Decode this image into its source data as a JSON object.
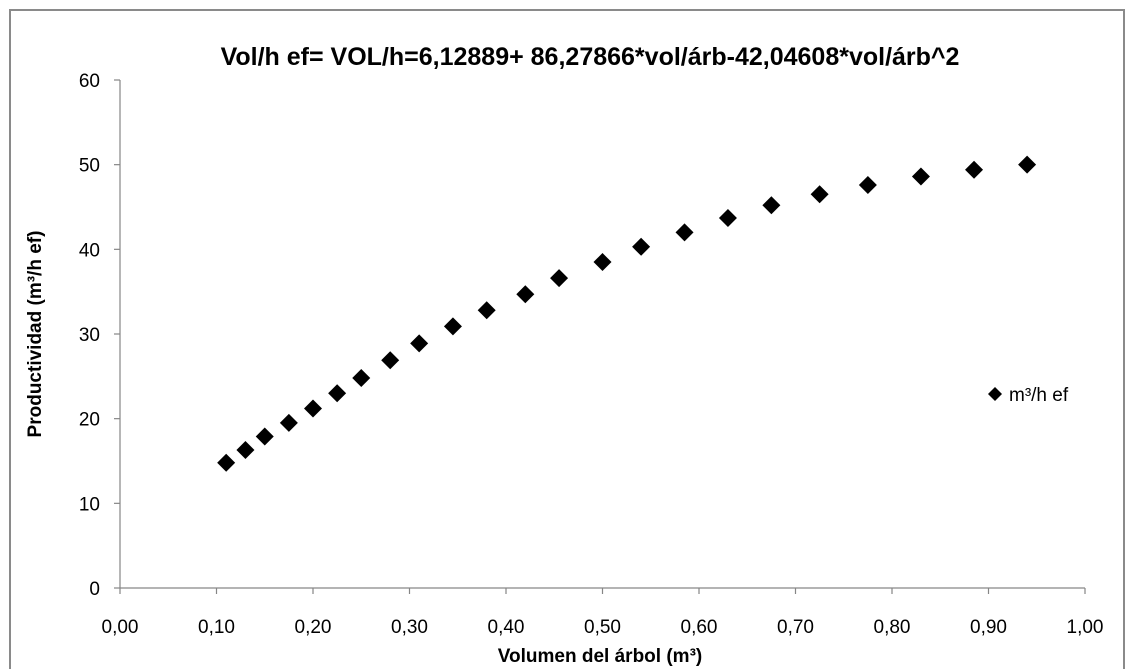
{
  "chart_data": {
    "type": "scatter",
    "title": "Vol/h ef= VOL/h=6,12889+ 86,27866*vol/árb-42,04608*vol/árb^2",
    "xlabel": "Volumen del árbol (m³)",
    "ylabel": "Productividad (m³/h ef)",
    "xlim": [
      0,
      1.0
    ],
    "ylim": [
      0,
      60
    ],
    "x_ticks": [
      "0,00",
      "0,10",
      "0,20",
      "0,30",
      "0,40",
      "0,50",
      "0,60",
      "0,70",
      "0,80",
      "0,90",
      "1,00"
    ],
    "x_tick_values": [
      0,
      0.1,
      0.2,
      0.3,
      0.4,
      0.5,
      0.6,
      0.7,
      0.8,
      0.9,
      1.0
    ],
    "y_ticks": [
      "0",
      "10",
      "20",
      "30",
      "40",
      "50",
      "60"
    ],
    "y_tick_values": [
      0,
      10,
      20,
      30,
      40,
      50,
      60
    ],
    "grid": false,
    "legend_position": "right",
    "series": [
      {
        "name": "m³/h ef",
        "marker": "diamond",
        "color": "#000000",
        "x": [
          0.11,
          0.13,
          0.15,
          0.175,
          0.2,
          0.225,
          0.25,
          0.28,
          0.31,
          0.345,
          0.38,
          0.42,
          0.455,
          0.5,
          0.54,
          0.585,
          0.63,
          0.675,
          0.725,
          0.775,
          0.83,
          0.885,
          0.94
        ],
        "y": [
          14.8,
          16.3,
          17.9,
          19.5,
          21.2,
          23.0,
          24.8,
          26.9,
          28.9,
          30.9,
          32.8,
          34.7,
          36.6,
          38.5,
          40.3,
          42.0,
          43.7,
          45.2,
          46.5,
          47.6,
          48.6,
          49.4,
          50.0
        ]
      }
    ]
  }
}
